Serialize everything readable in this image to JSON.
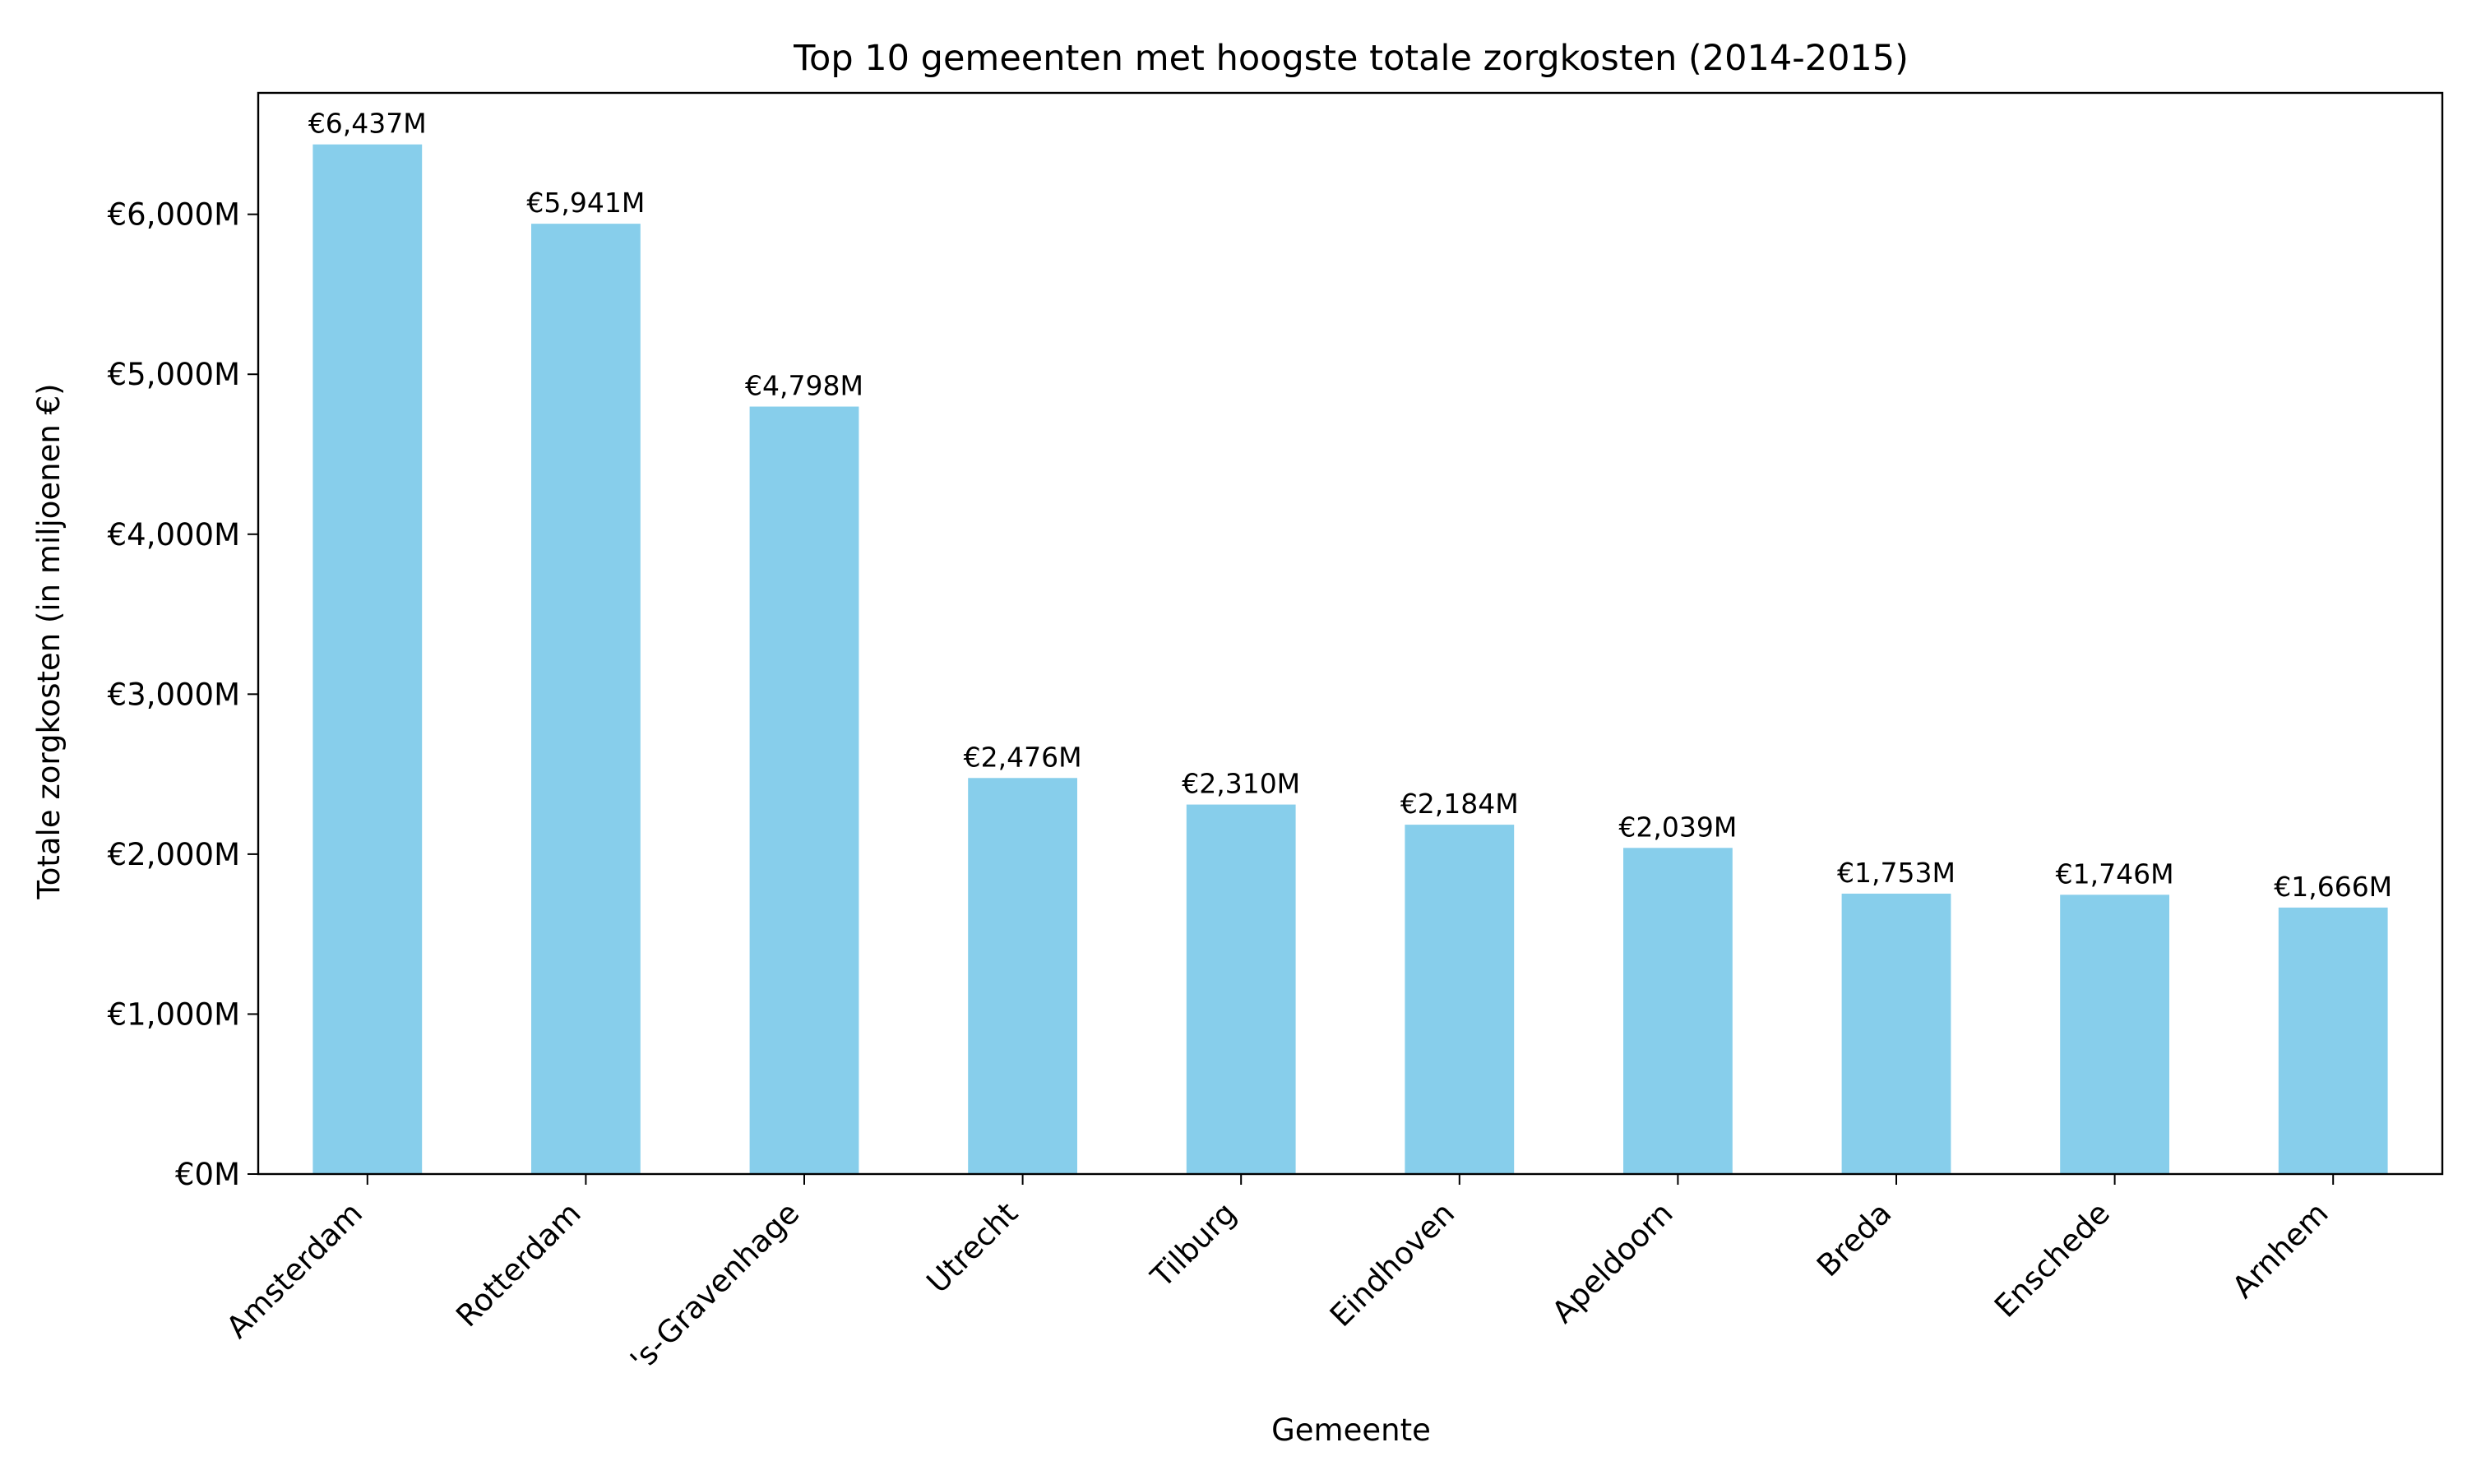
{
  "chart_data": {
    "type": "bar",
    "title": "Top 10 gemeenten met hoogste totale zorgkosten (2014-2015)",
    "xlabel": "Gemeente",
    "ylabel": "Totale zorgkosten (in miljoenen €)",
    "categories": [
      "Amsterdam",
      "Rotterdam",
      "'s-Gravenhage",
      "Utrecht",
      "Tilburg",
      "Eindhoven",
      "Apeldoorn",
      "Breda",
      "Enschede",
      "Arnhem"
    ],
    "values": [
      6437,
      5941,
      4798,
      2476,
      2310,
      2184,
      2039,
      1753,
      1746,
      1666
    ],
    "value_labels": [
      "€6,437M",
      "€5,941M",
      "€4,798M",
      "€2,476M",
      "€2,310M",
      "€2,184M",
      "€2,039M",
      "€1,753M",
      "€1,746M",
      "€1,666M"
    ],
    "yticks": [
      0,
      1000,
      2000,
      3000,
      4000,
      5000,
      6000
    ],
    "ytick_labels": [
      "€0M",
      "€1,000M",
      "€2,000M",
      "€3,000M",
      "€4,000M",
      "€5,000M",
      "€6,000M"
    ],
    "ylim": [
      0,
      6759
    ],
    "grid": false,
    "legend": "none",
    "colors": {
      "bar": "#87ceeb",
      "axes": "#000000",
      "text": "#000000"
    }
  }
}
